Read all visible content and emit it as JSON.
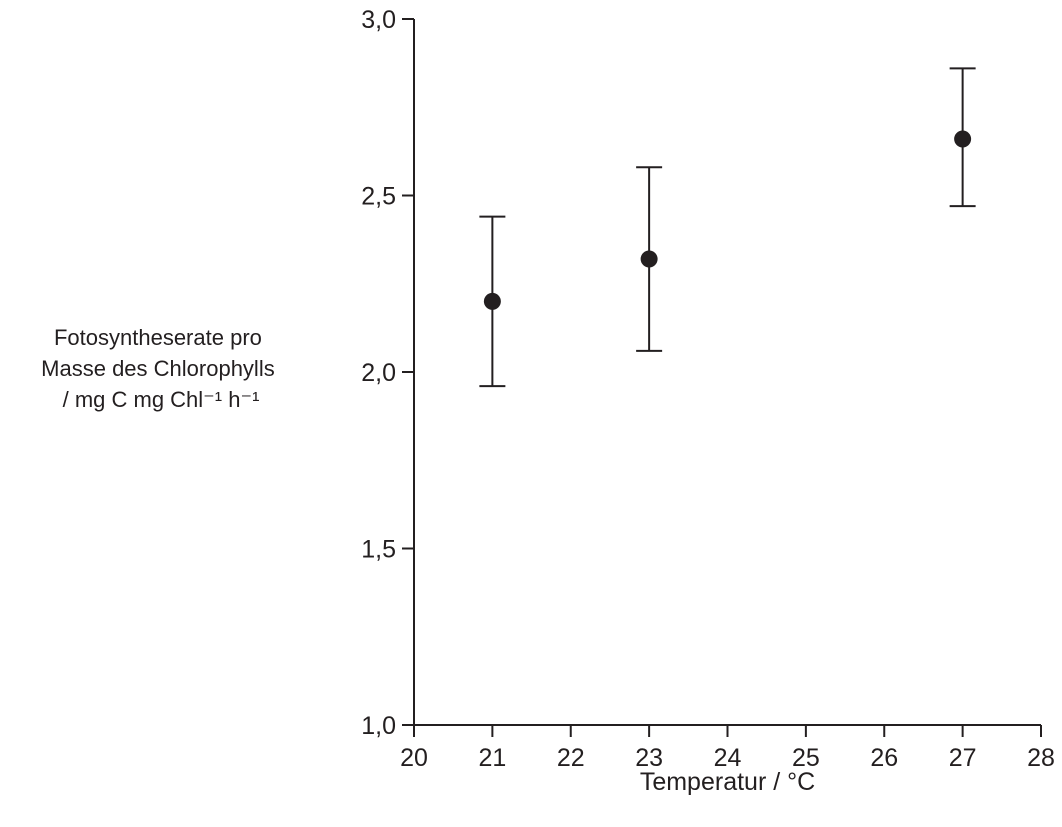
{
  "chart_data": {
    "type": "scatter",
    "title": "",
    "xlabel": "Temperatur / °C",
    "ylabel_lines": [
      "Fotosyntheserate pro",
      "Masse des Chlorophylls",
      "/ mg C mg Chl⁻¹ h⁻¹"
    ],
    "xlim": [
      20,
      28
    ],
    "ylim": [
      1.0,
      3.0
    ],
    "x_ticks": [
      20,
      21,
      22,
      23,
      24,
      25,
      26,
      27,
      28
    ],
    "x_tick_labels": [
      "20",
      "21",
      "22",
      "23",
      "24",
      "25",
      "26",
      "27",
      "28"
    ],
    "y_ticks": [
      1.0,
      1.5,
      2.0,
      2.5,
      3.0
    ],
    "y_tick_labels": [
      "1,0",
      "1,5",
      "2,0",
      "2,5",
      "3,0"
    ],
    "grid": false,
    "points": [
      {
        "x": 21,
        "y": 2.2,
        "y_low": 1.96,
        "y_high": 2.44
      },
      {
        "x": 23,
        "y": 2.32,
        "y_low": 2.06,
        "y_high": 2.58
      },
      {
        "x": 27,
        "y": 2.66,
        "y_low": 2.47,
        "y_high": 2.86
      }
    ],
    "colors": {
      "ink": "#231f20",
      "background": "#ffffff"
    }
  }
}
